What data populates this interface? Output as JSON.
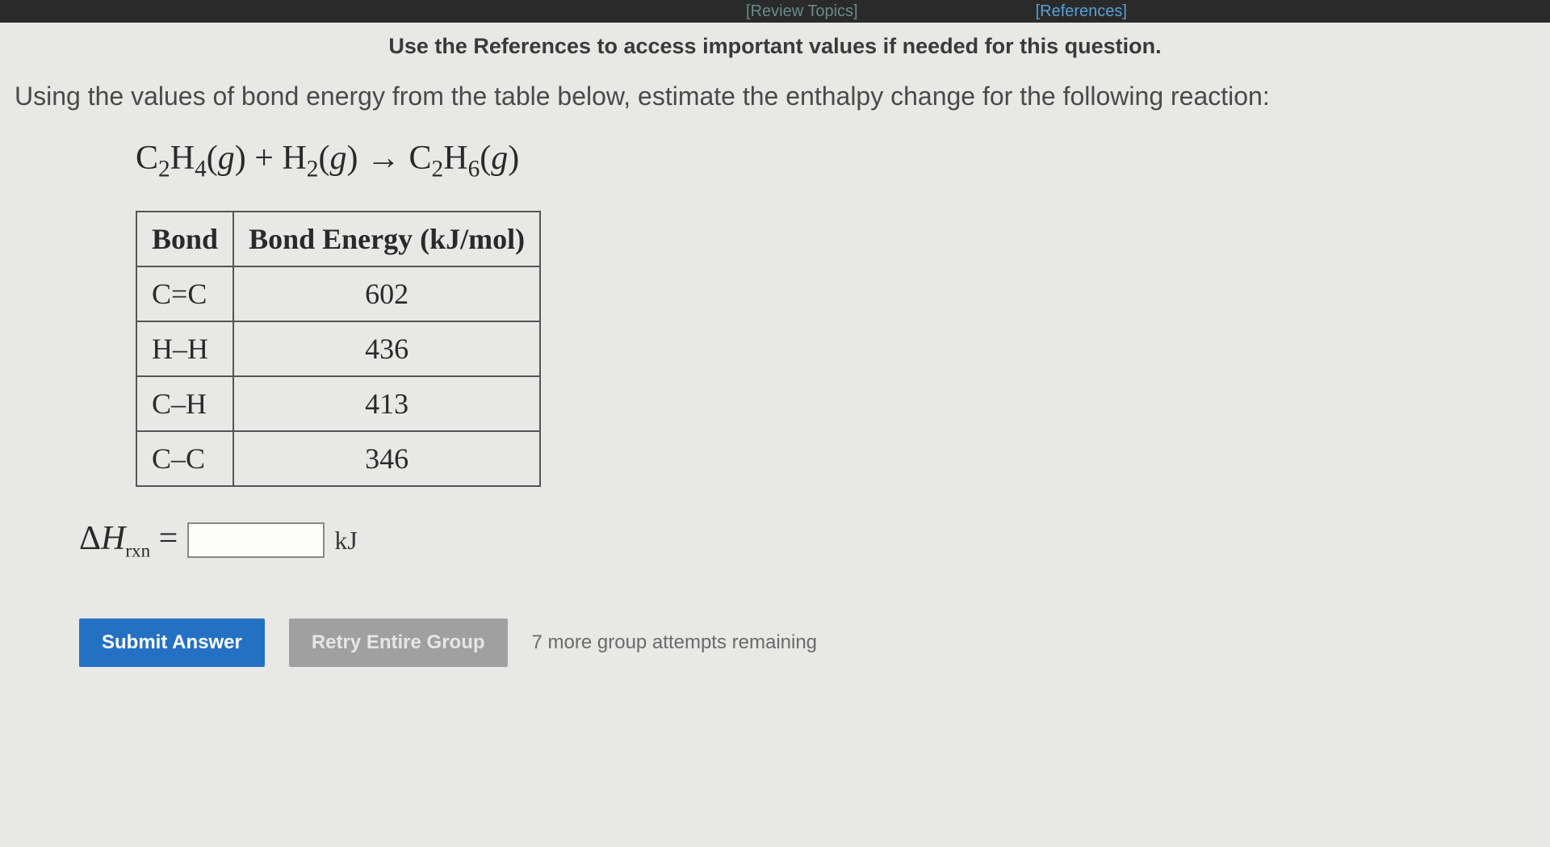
{
  "topbar": {
    "review_topics_label": "[Review Topics]",
    "references_label": "[References]"
  },
  "instruction": "Use the References to access important values if needed for this question.",
  "question": "Using the values of bond energy from the table below, estimate the enthalpy change for the following reaction:",
  "equation": {
    "reactant1_base": "C",
    "reactant1_sub1": "2",
    "reactant1_mid": "H",
    "reactant1_sub2": "4",
    "phase_g": "g",
    "plus": " + ",
    "reactant2_base": "H",
    "reactant2_sub": "2",
    "arrow": " → ",
    "product_base": "C",
    "product_sub1": "2",
    "product_mid": "H",
    "product_sub2": "6"
  },
  "bond_table": {
    "columns": [
      "Bond",
      "Bond Energy (kJ/mol)"
    ],
    "rows": [
      [
        "C=C",
        "602"
      ],
      [
        "H–H",
        "436"
      ],
      [
        "C–H",
        "413"
      ],
      [
        "C–C",
        "346"
      ]
    ],
    "header_fontsize": 36,
    "cell_fontsize": 36,
    "border_color": "#555555",
    "text_color": "#2a2a2a"
  },
  "answer": {
    "delta": "Δ",
    "H": "H",
    "rxn": "rxn",
    "equals": " = ",
    "input_value": "",
    "unit": "kJ"
  },
  "buttons": {
    "submit_label": "Submit Answer",
    "retry_label": "Retry Entire Group",
    "attempts_text": "7 more group attempts remaining"
  },
  "colors": {
    "background": "#e8e8e6",
    "topbar_bg": "#2a2a2a",
    "link_blue": "#5a9fd4",
    "link_muted": "#6a8a8a",
    "primary_btn": "#2471c4",
    "secondary_btn": "#a0a0a0",
    "text_main": "#3a3a3a"
  }
}
